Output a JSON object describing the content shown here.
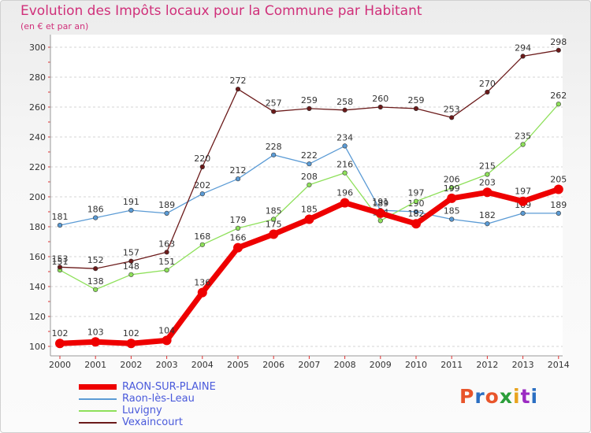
{
  "title": "Evolution des Impôts locaux pour la Commune par Habitant",
  "subtitle": "(en € et par an)",
  "brand": {
    "text": "Proxiti",
    "colors": [
      "#e8552b",
      "#2b6fc2",
      "#e8552b",
      "#2b9e3a",
      "#e8a31e",
      "#9b2bc2",
      "#2b6fc2"
    ]
  },
  "chart_data": {
    "type": "line",
    "title": "Evolution des Impôts locaux pour la Commune par Habitant",
    "subtitle": "(en € et par an)",
    "xlabel": "",
    "ylabel": "",
    "categories": [
      "2000",
      "2001",
      "2002",
      "2003",
      "2004",
      "2005",
      "2006",
      "2007",
      "2008",
      "2009",
      "2010",
      "2011",
      "2012",
      "2013",
      "2014"
    ],
    "ylim": [
      100,
      300
    ],
    "yticks": [
      100,
      120,
      140,
      160,
      180,
      200,
      220,
      240,
      260,
      280,
      300
    ],
    "grid": "horizontal",
    "legend_position": "bottom-left",
    "series": [
      {
        "name": "RAON-SUR-PLAINE",
        "color": "#ee0000",
        "bold": true,
        "values": [
          102,
          103,
          102,
          104,
          136,
          166,
          175,
          185,
          196,
          189,
          182,
          199,
          203,
          197,
          205
        ]
      },
      {
        "name": "Raon-lès-Leau",
        "color": "#5b9bd5",
        "bold": false,
        "values": [
          181,
          186,
          191,
          189,
          202,
          212,
          228,
          222,
          234,
          191,
          190,
          185,
          182,
          189,
          189
        ]
      },
      {
        "name": "Luvigny",
        "color": "#8ee05a",
        "bold": false,
        "values": [
          151,
          138,
          148,
          151,
          168,
          179,
          185,
          208,
          216,
          184,
          197,
          206,
          215,
          235,
          262
        ]
      },
      {
        "name": "Vexaincourt",
        "color": "#6b1a1a",
        "bold": false,
        "values": [
          153,
          152,
          157,
          163,
          220,
          272,
          257,
          259,
          258,
          260,
          259,
          253,
          270,
          294,
          298
        ]
      }
    ]
  }
}
